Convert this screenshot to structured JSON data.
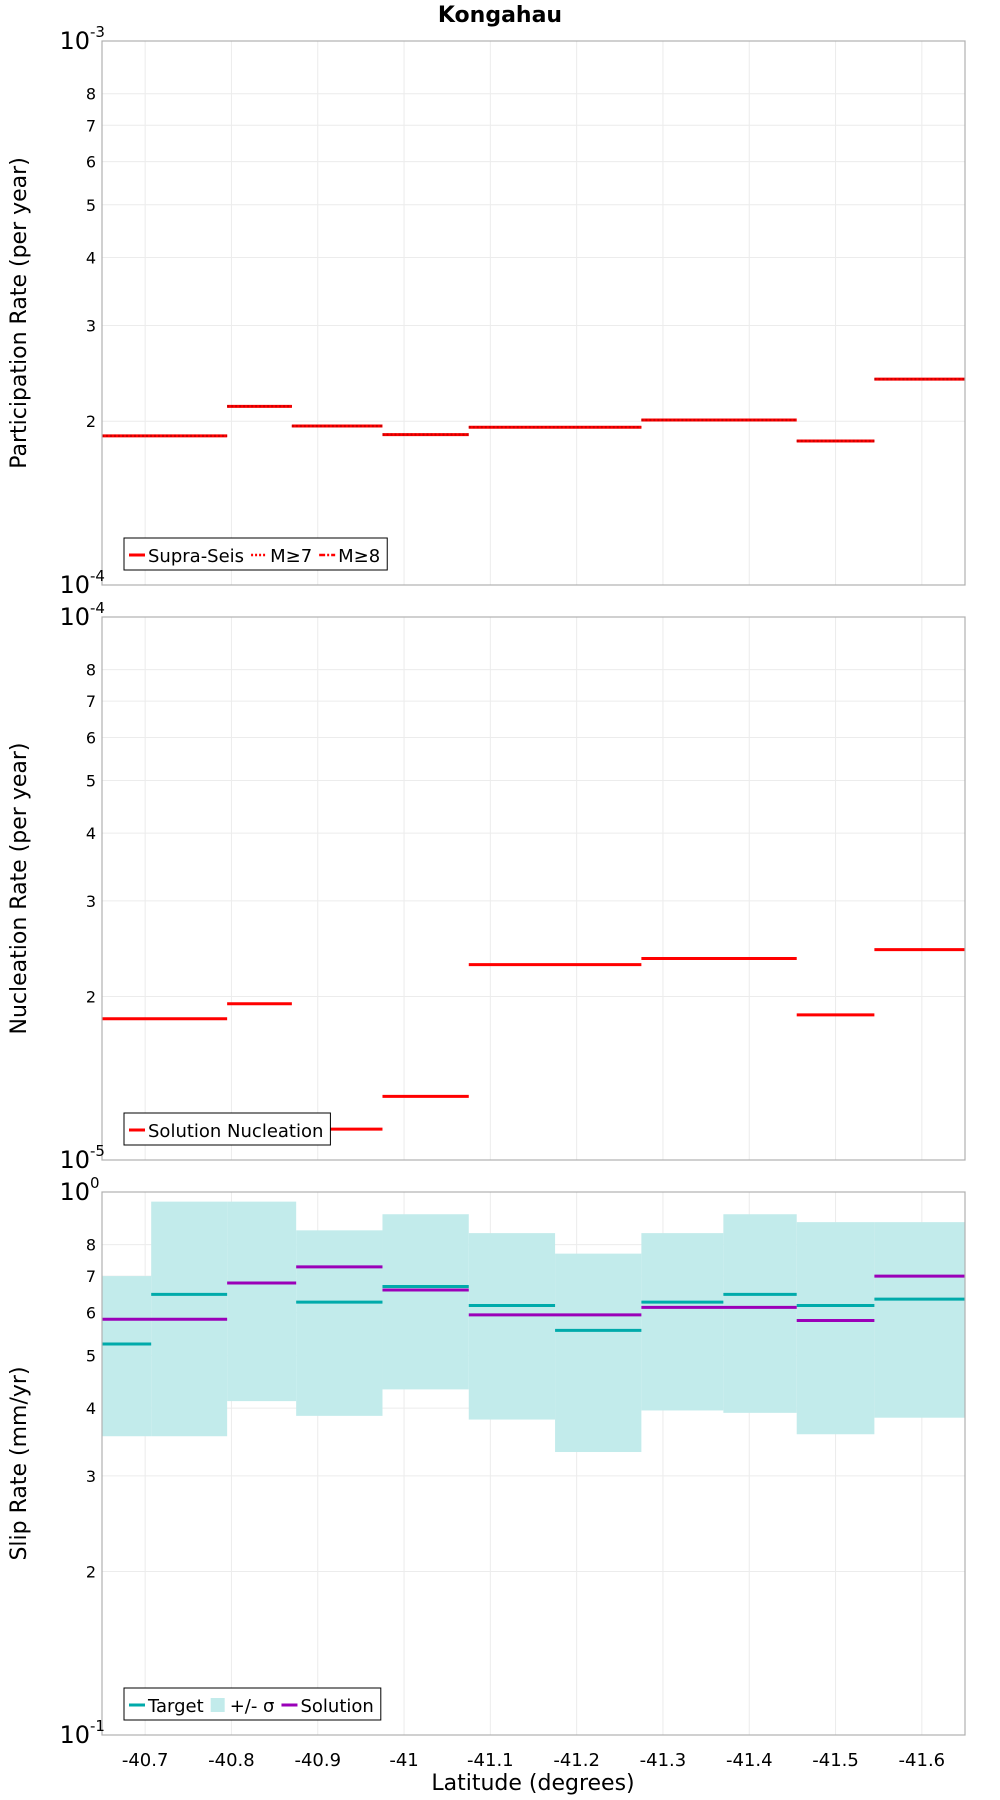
{
  "title": "Kongahau",
  "xlabel": "Latitude (degrees)",
  "x_ticks": [
    "-40.7",
    "-40.8",
    "-40.9",
    "-41",
    "-41.1",
    "-41.2",
    "-41.3",
    "-41.4",
    "-41.5",
    "-41.6"
  ],
  "chart_data": [
    {
      "type": "line",
      "subtype": "step",
      "ylabel": "Participation Rate (per year)",
      "yscale": "log",
      "ylim": [
        0.0001,
        0.001
      ],
      "xlim": [
        -40.65,
        -41.65
      ],
      "decade_ticks": [
        {
          "base": "10",
          "exp": "-3"
        },
        {
          "base": "10",
          "exp": "-4"
        }
      ],
      "minor_tick_labels": [
        "8",
        "7",
        "6",
        "5",
        "4",
        "3",
        "2"
      ],
      "legend_position": "bottom-left",
      "legend": [
        "Supra-Seis",
        "M≥7",
        "M≥8"
      ],
      "color": "#ff0000",
      "x_edges": [
        -40.65,
        -40.795,
        -40.87,
        -40.975,
        -41.075,
        -41.275,
        -41.455,
        -41.545,
        -41.65
      ],
      "series": [
        {
          "name": "Supra-Seis",
          "style": "solid",
          "values": [
            0.000188,
            0.000213,
            0.000196,
            0.000189,
            0.000195,
            0.000201,
            0.000184,
            0.000239
          ]
        },
        {
          "name": "M≥7",
          "style": "dotted",
          "values": [
            0.000188,
            0.000213,
            0.000196,
            0.000189,
            0.000195,
            0.000201,
            0.000184,
            0.000239
          ]
        }
      ]
    },
    {
      "type": "line",
      "subtype": "step",
      "ylabel": "Nucleation Rate (per year)",
      "yscale": "log",
      "ylim": [
        1e-05,
        0.0001
      ],
      "xlim": [
        -40.65,
        -41.65
      ],
      "decade_ticks": [
        {
          "base": "10",
          "exp": "-4"
        },
        {
          "base": "10",
          "exp": "-5"
        }
      ],
      "minor_tick_labels": [
        "8",
        "7",
        "6",
        "5",
        "4",
        "3",
        "2"
      ],
      "legend_position": "bottom-left",
      "legend": [
        "Solution Nucleation"
      ],
      "color": "#ff0000",
      "series": [
        {
          "name": "Solution Nucleation",
          "segments": [
            {
              "x0": -40.65,
              "x1": -40.795,
              "y": 1.82e-05
            },
            {
              "x0": -40.795,
              "x1": -40.87,
              "y": 1.94e-05
            },
            {
              "x0": -40.87,
              "x1": -40.975,
              "y": 1.14e-05
            },
            {
              "x0": -40.975,
              "x1": -41.075,
              "y": 1.31e-05
            },
            {
              "x0": -41.075,
              "x1": -41.275,
              "y": 2.29e-05
            },
            {
              "x0": -41.275,
              "x1": -41.455,
              "y": 2.35e-05
            },
            {
              "x0": -41.455,
              "x1": -41.545,
              "y": 1.85e-05
            },
            {
              "x0": -41.545,
              "x1": -41.65,
              "y": 2.44e-05
            }
          ]
        }
      ]
    },
    {
      "type": "line",
      "subtype": "step",
      "ylabel": "Slip Rate (mm/yr)",
      "yscale": "log",
      "ylim": [
        0.1,
        1
      ],
      "xlim": [
        -40.65,
        -41.65
      ],
      "decade_ticks": [
        {
          "base": "10",
          "exp": "0"
        },
        {
          "base": "10",
          "exp": "-1"
        }
      ],
      "minor_tick_labels": [
        "8",
        "7",
        "6",
        "5",
        "4",
        "3",
        "2"
      ],
      "legend_position": "bottom-left",
      "legend": [
        "Target",
        "+/- σ",
        "Solution"
      ],
      "colors": {
        "target": "#00aaaa",
        "band": "#c2ebeb",
        "solution": "#9a00b8"
      },
      "band": [
        {
          "x0": -40.65,
          "x1": -40.707,
          "low": 0.355,
          "high": 0.7
        },
        {
          "x0": -40.707,
          "x1": -40.795,
          "low": 0.355,
          "high": 0.96
        },
        {
          "x0": -40.795,
          "x1": -40.875,
          "low": 0.412,
          "high": 0.96
        },
        {
          "x0": -40.875,
          "x1": -40.975,
          "low": 0.387,
          "high": 0.85
        },
        {
          "x0": -40.975,
          "x1": -41.075,
          "low": 0.433,
          "high": 0.91
        },
        {
          "x0": -41.075,
          "x1": -41.175,
          "low": 0.381,
          "high": 0.84
        },
        {
          "x0": -41.175,
          "x1": -41.275,
          "low": 0.332,
          "high": 0.77
        },
        {
          "x0": -41.275,
          "x1": -41.37,
          "low": 0.396,
          "high": 0.84
        },
        {
          "x0": -41.37,
          "x1": -41.455,
          "low": 0.392,
          "high": 0.91
        },
        {
          "x0": -41.455,
          "x1": -41.545,
          "low": 0.358,
          "high": 0.88
        },
        {
          "x0": -41.545,
          "x1": -41.65,
          "low": 0.384,
          "high": 0.88
        }
      ],
      "series": [
        {
          "name": "Target",
          "segments": [
            {
              "x0": -40.65,
              "x1": -40.707,
              "y": 0.525
            },
            {
              "x0": -40.707,
              "x1": -40.795,
              "y": 0.648
            },
            {
              "x0": -40.875,
              "x1": -40.975,
              "y": 0.627
            },
            {
              "x0": -40.975,
              "x1": -41.075,
              "y": 0.67
            },
            {
              "x0": -41.075,
              "x1": -41.175,
              "y": 0.618
            },
            {
              "x0": -41.175,
              "x1": -41.275,
              "y": 0.556
            },
            {
              "x0": -41.275,
              "x1": -41.37,
              "y": 0.627
            },
            {
              "x0": -41.37,
              "x1": -41.455,
              "y": 0.648
            },
            {
              "x0": -41.455,
              "x1": -41.545,
              "y": 0.618
            },
            {
              "x0": -41.545,
              "x1": -41.65,
              "y": 0.635
            }
          ]
        },
        {
          "name": "Solution",
          "segments": [
            {
              "x0": -40.65,
              "x1": -40.795,
              "y": 0.583
            },
            {
              "x0": -40.795,
              "x1": -40.875,
              "y": 0.68
            },
            {
              "x0": -40.875,
              "x1": -40.975,
              "y": 0.728
            },
            {
              "x0": -40.975,
              "x1": -41.075,
              "y": 0.66
            },
            {
              "x0": -41.075,
              "x1": -41.275,
              "y": 0.594
            },
            {
              "x0": -41.275,
              "x1": -41.455,
              "y": 0.613
            },
            {
              "x0": -41.455,
              "x1": -41.545,
              "y": 0.58
            },
            {
              "x0": -41.545,
              "x1": -41.65,
              "y": 0.7
            }
          ]
        }
      ]
    }
  ]
}
